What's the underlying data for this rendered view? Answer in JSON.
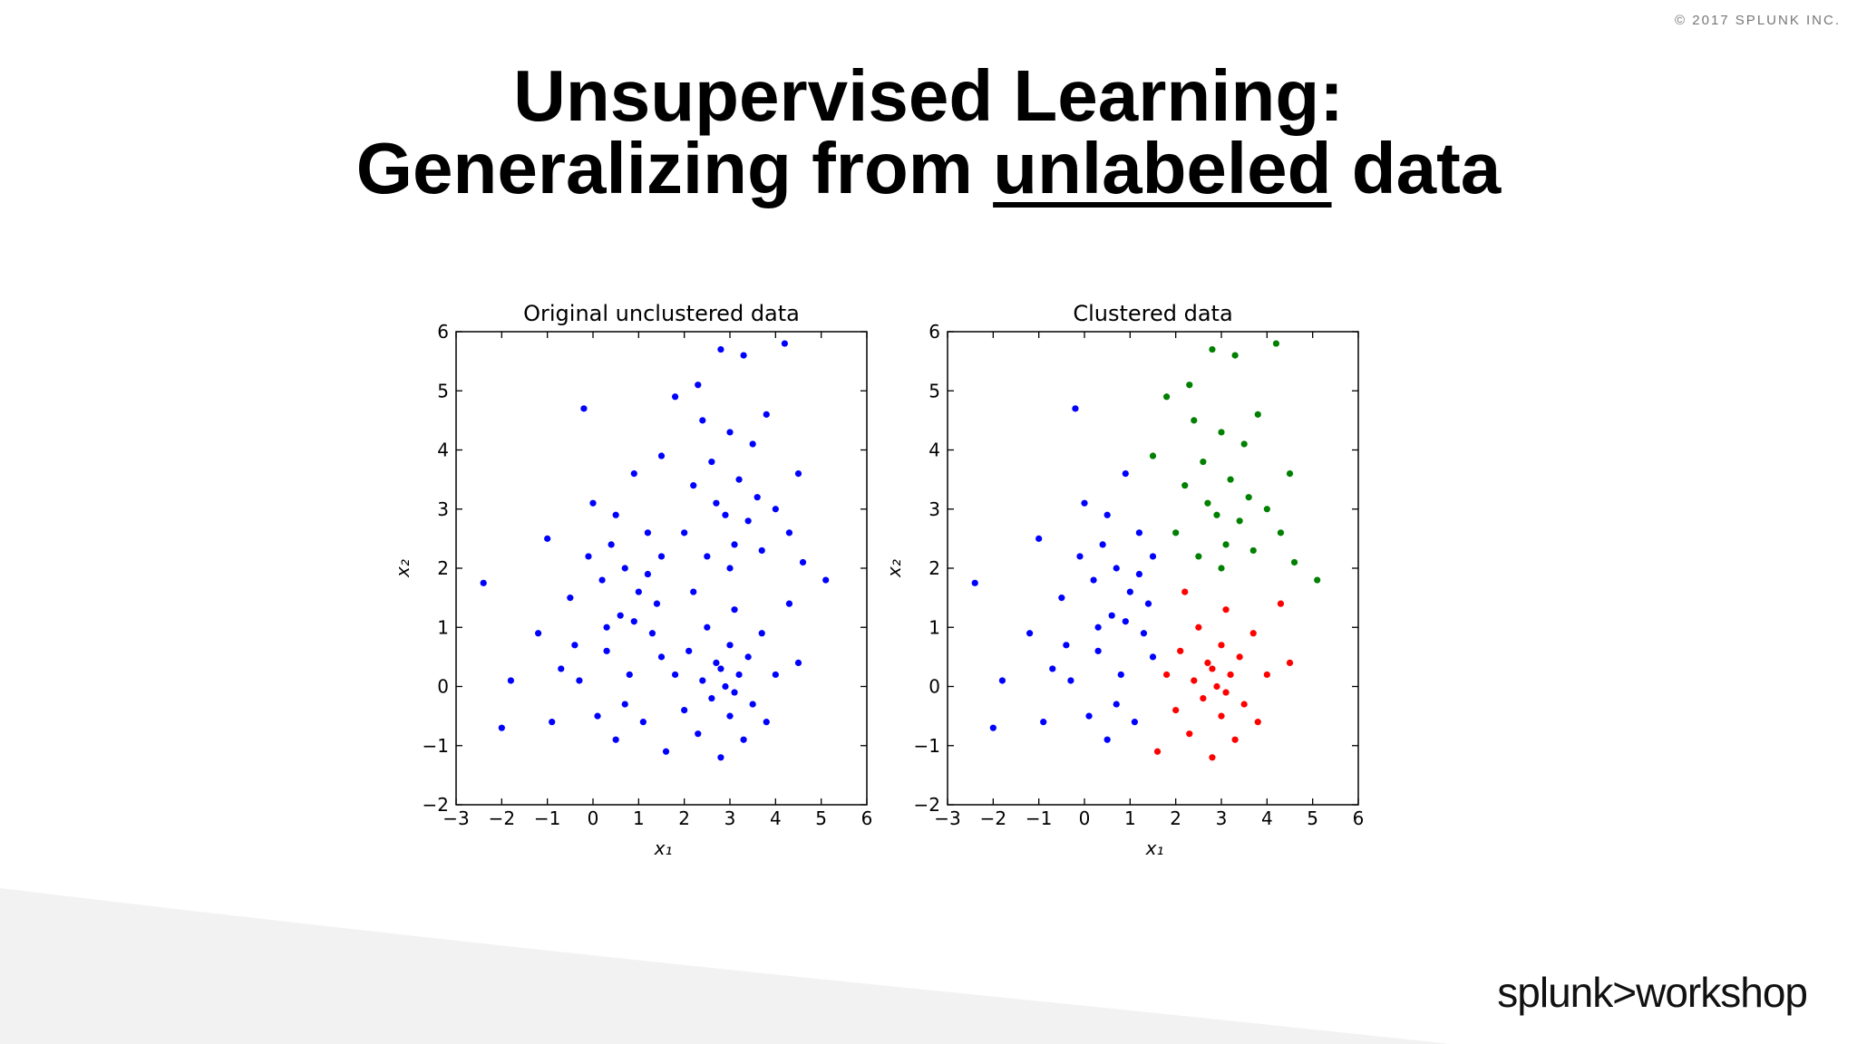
{
  "slide": {
    "copyright": "© 2017 SPLUNK INC.",
    "title_line1": "Unsupervised Learning:",
    "title_line2_start": "Generalizing from ",
    "title_line2_emph": "unlabeled",
    "title_line2_end": " data",
    "logo": "splunk>workshop"
  },
  "chart_data": [
    {
      "type": "scatter",
      "title": "Original unclustered data",
      "xlabel": "x₁",
      "ylabel": "x₂",
      "xlim": [
        -3,
        6
      ],
      "ylim": [
        -2,
        6
      ],
      "xticks": [
        {
          "value": -3,
          "label": "−3"
        },
        {
          "value": -2,
          "label": "−2"
        },
        {
          "value": -1,
          "label": "−1"
        },
        0,
        1,
        2,
        3,
        4,
        5,
        6
      ],
      "yticks": [
        {
          "value": -2,
          "label": "−2"
        },
        {
          "value": -1,
          "label": "−1"
        },
        0,
        1,
        2,
        3,
        4,
        5,
        6
      ],
      "series": [
        {
          "color": "#0000ff",
          "x": [
            -2.4,
            -2,
            -1.8,
            -1.2,
            -1,
            -0.9,
            -0.7,
            -0.5,
            -0.3,
            -0.2,
            -0.1,
            0,
            0.1,
            0.2,
            0.3,
            0.4,
            0.5,
            0.6,
            0.7,
            0.8,
            0.9,
            1.0,
            1.1,
            1.2,
            1.3,
            1.4,
            1.5,
            0.3,
            0.9,
            1.2,
            -0.4,
            0.5,
            1.5,
            0.7,
            1.5,
            1.8,
            2.0,
            2.2,
            2.3,
            2.5,
            2.6,
            2.8,
            2.9,
            3.0,
            3.1,
            3.2,
            3.3,
            3.4,
            3.5,
            3.6,
            3.7,
            3.8,
            4.0,
            4.2,
            4.3,
            4.5,
            4.6,
            5.1,
            2.7,
            3.0,
            2.4,
            1.6,
            1.8,
            2.0,
            2.1,
            2.2,
            2.3,
            2.4,
            2.5,
            2.6,
            2.7,
            2.8,
            2.9,
            3.0,
            3.0,
            3.1,
            3.2,
            3.3,
            3.4,
            3.5,
            3.7,
            3.8,
            4.0,
            4.3,
            4.5,
            2.8,
            3.1
          ],
          "y": [
            1.75,
            -0.7,
            0.1,
            0.9,
            2.5,
            -0.6,
            0.3,
            1.5,
            0.1,
            4.7,
            2.2,
            3.1,
            -0.5,
            1.8,
            0.6,
            2.4,
            -0.9,
            1.2,
            2.0,
            0.2,
            3.6,
            1.6,
            -0.6,
            2.6,
            0.9,
            1.4,
            0.5,
            1.0,
            1.1,
            1.9,
            0.7,
            2.9,
            2.2,
            -0.3,
            3.9,
            4.9,
            2.6,
            3.4,
            5.1,
            2.2,
            3.8,
            5.7,
            2.9,
            4.3,
            2.4,
            3.5,
            5.6,
            2.8,
            4.1,
            3.2,
            2.3,
            4.6,
            3.0,
            5.8,
            2.6,
            3.6,
            2.1,
            1.8,
            3.1,
            2.0,
            4.5,
            -1.1,
            0.2,
            -0.4,
            0.6,
            1.6,
            -0.8,
            0.1,
            1.0,
            -0.2,
            0.4,
            -1.2,
            0.0,
            0.7,
            -0.5,
            1.3,
            0.2,
            -0.9,
            0.5,
            -0.3,
            0.9,
            -0.6,
            0.2,
            1.4,
            0.4,
            0.3,
            -0.1
          ]
        }
      ]
    },
    {
      "type": "scatter",
      "title": "Clustered data",
      "xlabel": "x₁",
      "ylabel": "x₂",
      "xlim": [
        -3,
        6
      ],
      "ylim": [
        -2,
        6
      ],
      "xticks": [
        {
          "value": -3,
          "label": "−3"
        },
        {
          "value": -2,
          "label": "−2"
        },
        {
          "value": -1,
          "label": "−1"
        },
        0,
        1,
        2,
        3,
        4,
        5,
        6
      ],
      "yticks": [
        {
          "value": -2,
          "label": "−2"
        },
        {
          "value": -1,
          "label": "−1"
        },
        0,
        1,
        2,
        3,
        4,
        5,
        6
      ],
      "series": [
        {
          "color": "#0000ff",
          "x": [
            -2.4,
            -2,
            -1.8,
            -1.2,
            -1,
            -0.9,
            -0.7,
            -0.5,
            -0.3,
            -0.2,
            -0.1,
            0,
            0.1,
            0.2,
            0.3,
            0.4,
            0.5,
            0.6,
            0.7,
            0.8,
            0.9,
            1.0,
            1.1,
            1.2,
            1.3,
            1.4,
            1.5,
            0.3,
            0.9,
            1.2,
            -0.4,
            0.5,
            1.5,
            0.7
          ],
          "y": [
            1.75,
            -0.7,
            0.1,
            0.9,
            2.5,
            -0.6,
            0.3,
            1.5,
            0.1,
            4.7,
            2.2,
            3.1,
            -0.5,
            1.8,
            0.6,
            2.4,
            -0.9,
            1.2,
            2.0,
            0.2,
            3.6,
            1.6,
            -0.6,
            2.6,
            0.9,
            1.4,
            0.5,
            1.0,
            1.1,
            1.9,
            0.7,
            2.9,
            2.2,
            -0.3
          ]
        },
        {
          "color": "#008000",
          "x": [
            1.5,
            1.8,
            2.0,
            2.2,
            2.3,
            2.5,
            2.6,
            2.8,
            2.9,
            3.0,
            3.1,
            3.2,
            3.3,
            3.4,
            3.5,
            3.6,
            3.7,
            3.8,
            4.0,
            4.2,
            4.3,
            4.5,
            4.6,
            5.1,
            2.7,
            3.0,
            2.4
          ],
          "y": [
            3.9,
            4.9,
            2.6,
            3.4,
            5.1,
            2.2,
            3.8,
            5.7,
            2.9,
            4.3,
            2.4,
            3.5,
            5.6,
            2.8,
            4.1,
            3.2,
            2.3,
            4.6,
            3.0,
            5.8,
            2.6,
            3.6,
            2.1,
            1.8,
            3.1,
            2.0,
            4.5
          ]
        },
        {
          "color": "#ff0000",
          "x": [
            1.6,
            1.8,
            2.0,
            2.1,
            2.2,
            2.3,
            2.4,
            2.5,
            2.6,
            2.7,
            2.8,
            2.9,
            3.0,
            3.0,
            3.1,
            3.2,
            3.3,
            3.4,
            3.5,
            3.7,
            3.8,
            4.0,
            4.3,
            4.5,
            2.8,
            3.1
          ],
          "y": [
            -1.1,
            0.2,
            -0.4,
            0.6,
            1.6,
            -0.8,
            0.1,
            1.0,
            -0.2,
            0.4,
            -1.2,
            0.0,
            0.7,
            -0.5,
            1.3,
            0.2,
            -0.9,
            0.5,
            -0.3,
            0.9,
            -0.6,
            0.2,
            1.4,
            0.4,
            0.3,
            -0.1
          ]
        }
      ]
    }
  ]
}
